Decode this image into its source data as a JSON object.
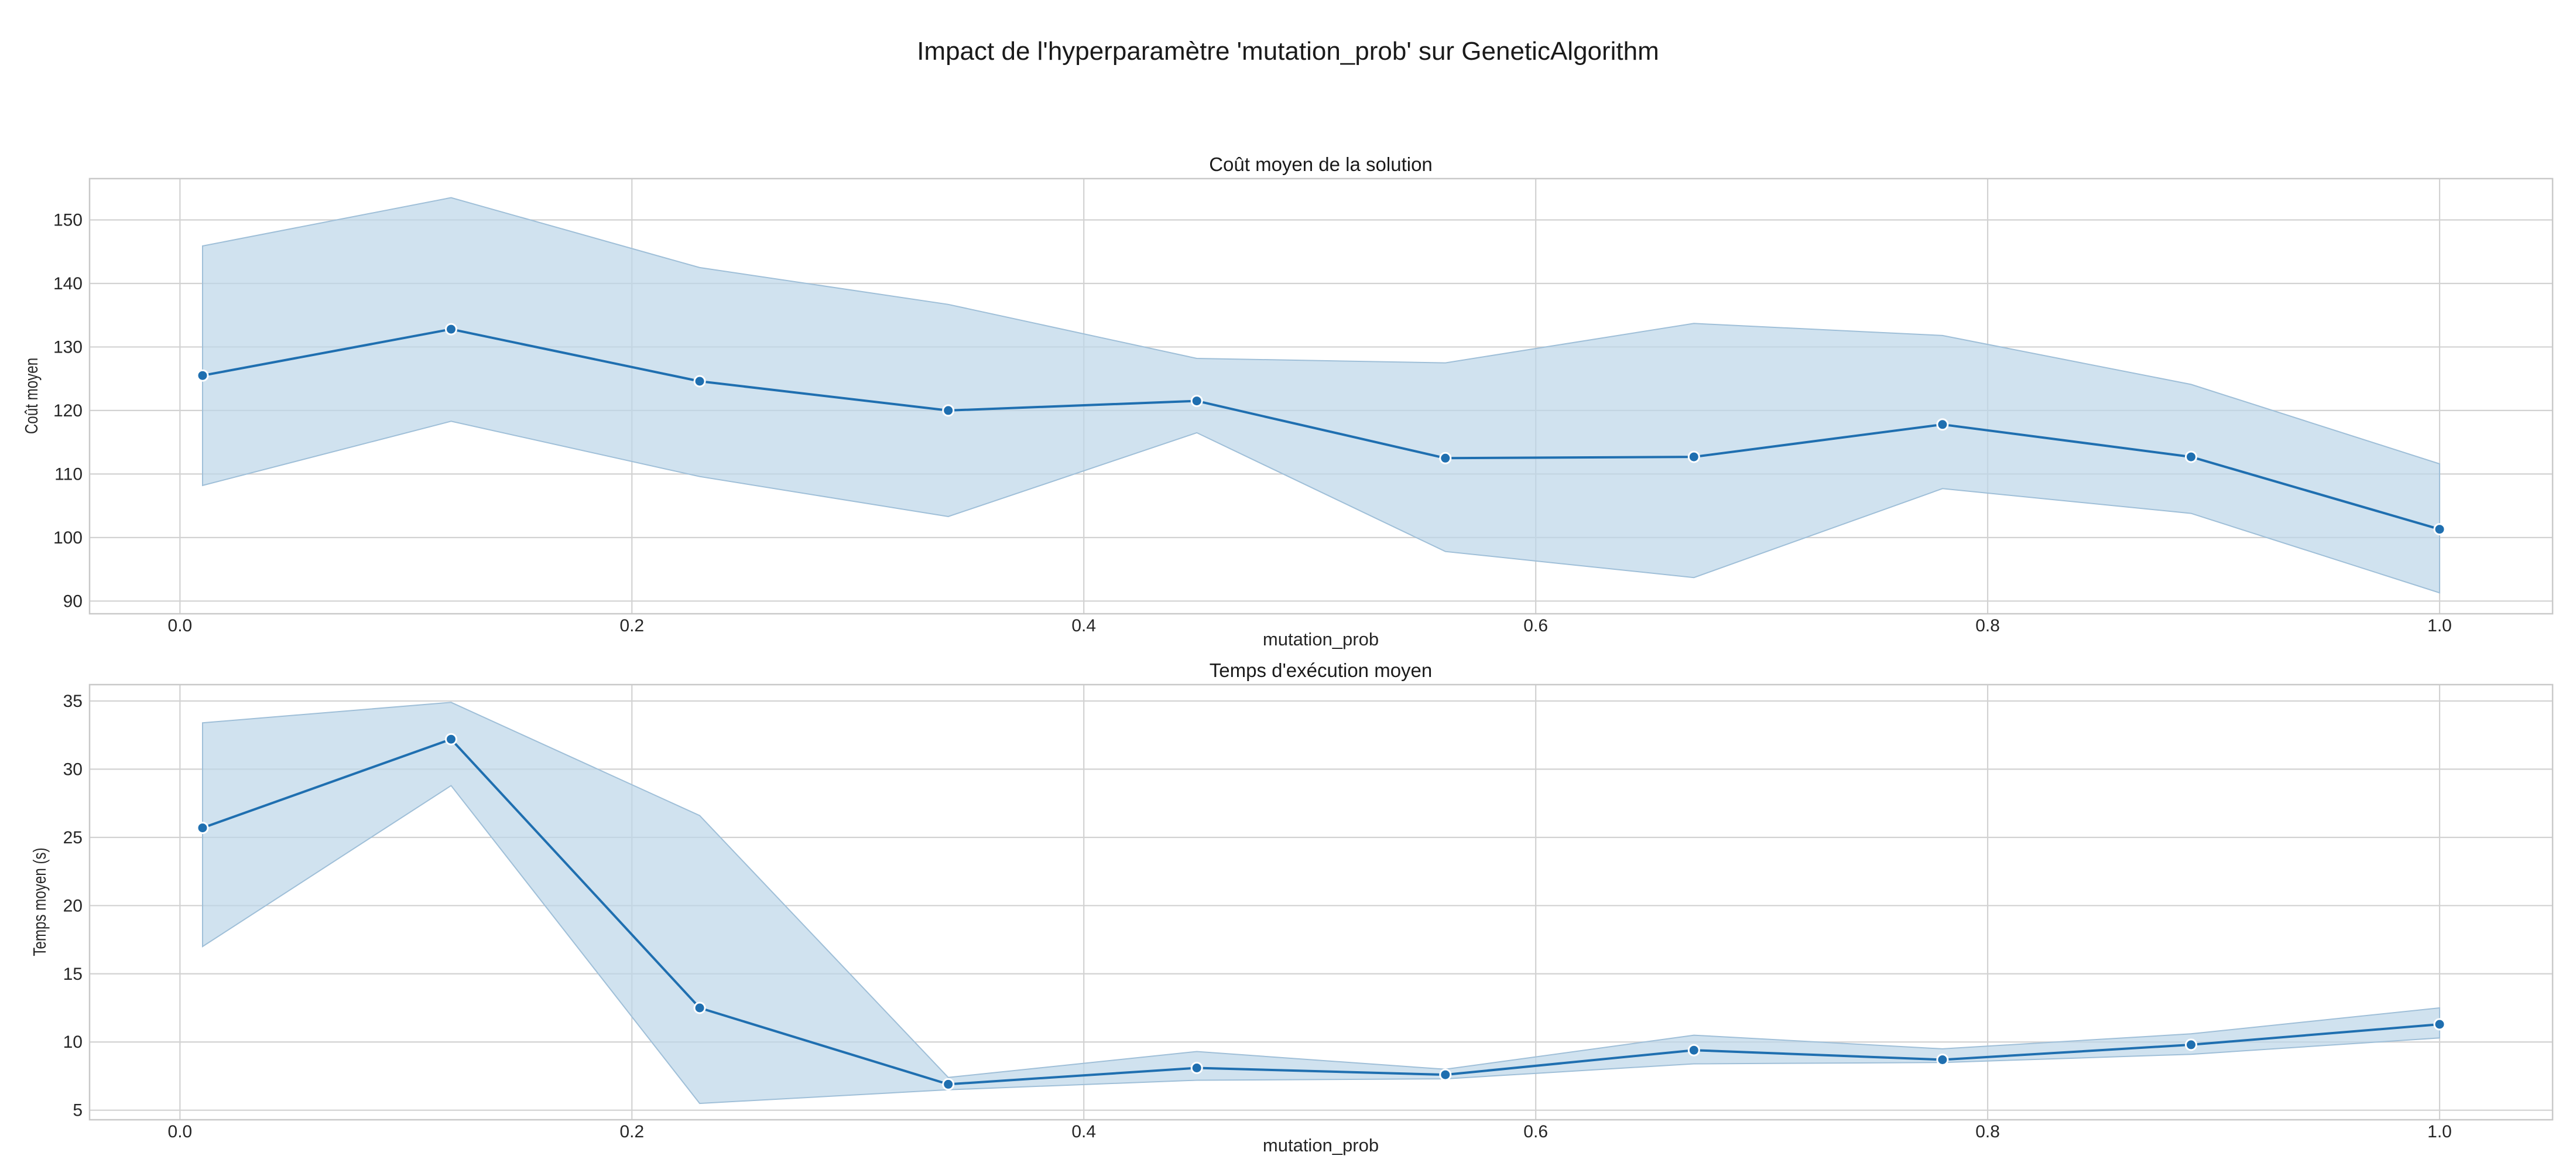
{
  "figure": {
    "suptitle": "Impact de l'hyperparamètre 'mutation_prob' sur GeneticAlgorithm"
  },
  "colors": {
    "line": "#1f6fb0",
    "band": "#bcd5e8"
  },
  "chart_data": [
    {
      "type": "line",
      "title": "Coût moyen de la solution",
      "xlabel": "mutation_prob",
      "ylabel": "Coût moyen",
      "xlim": [
        -0.04,
        1.05
      ],
      "ylim": [
        88,
        156.5
      ],
      "xticks": [
        0.0,
        0.2,
        0.4,
        0.6,
        0.8,
        1.0
      ],
      "xtick_labels": [
        "0.0",
        "0.2",
        "0.4",
        "0.6",
        "0.8",
        "1.0"
      ],
      "yticks": [
        90,
        100,
        110,
        120,
        130,
        140,
        150
      ],
      "ytick_labels": [
        "90",
        "100",
        "110",
        "120",
        "130",
        "140",
        "150"
      ],
      "grid": true,
      "x": [
        0.01,
        0.12,
        0.23,
        0.34,
        0.45,
        0.56,
        0.67,
        0.78,
        0.89,
        1.0
      ],
      "series": [
        {
          "values": [
            125.5,
            132.8,
            124.6,
            120.0,
            121.5,
            112.5,
            112.7,
            117.8,
            112.7,
            101.3
          ],
          "ci_upper": [
            145.9,
            153.5,
            142.5,
            136.7,
            128.2,
            127.5,
            133.7,
            131.8,
            124.1,
            111.6
          ],
          "ci_lower": [
            108.2,
            118.3,
            109.6,
            103.3,
            116.5,
            97.8,
            93.7,
            107.7,
            103.8,
            91.3
          ]
        }
      ]
    },
    {
      "type": "line",
      "title": "Temps d'exécution moyen",
      "xlabel": "mutation_prob",
      "ylabel": "Temps moyen (s)",
      "xlim": [
        -0.04,
        1.05
      ],
      "ylim": [
        4.3,
        36.2
      ],
      "xticks": [
        0.0,
        0.2,
        0.4,
        0.6,
        0.8,
        1.0
      ],
      "xtick_labels": [
        "0.0",
        "0.2",
        "0.4",
        "0.6",
        "0.8",
        "1.0"
      ],
      "yticks": [
        5,
        10,
        15,
        20,
        25,
        30,
        35
      ],
      "ytick_labels": [
        "5",
        "10",
        "15",
        "20",
        "25",
        "30",
        "35"
      ],
      "grid": true,
      "x": [
        0.01,
        0.12,
        0.23,
        0.34,
        0.45,
        0.56,
        0.67,
        0.78,
        0.89,
        1.0
      ],
      "series": [
        {
          "values": [
            25.7,
            32.2,
            12.5,
            6.9,
            8.1,
            7.6,
            9.4,
            8.7,
            9.8,
            11.3
          ],
          "ci_upper": [
            33.4,
            34.9,
            26.6,
            7.4,
            9.3,
            8.0,
            10.5,
            9.5,
            10.6,
            12.5
          ],
          "ci_lower": [
            17.0,
            28.8,
            5.5,
            6.5,
            7.2,
            7.3,
            8.4,
            8.5,
            9.1,
            10.3
          ]
        }
      ]
    }
  ]
}
